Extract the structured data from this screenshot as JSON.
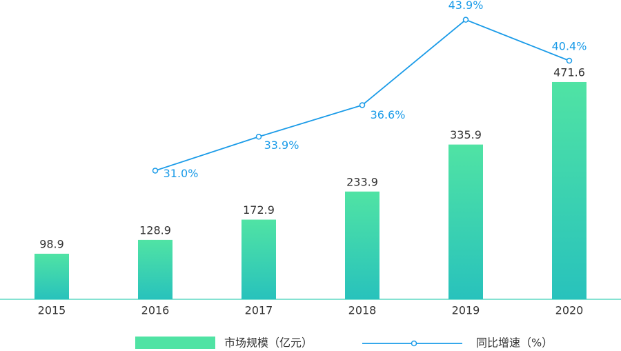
{
  "chart_data": {
    "type": "bar-line",
    "categories": [
      "2015",
      "2016",
      "2017",
      "2018",
      "2019",
      "2020"
    ],
    "series": [
      {
        "name": "市场规模（亿元）",
        "type": "bar",
        "color": "#50e3a4",
        "gradient": [
          "#50e3a4",
          "#28c2bc"
        ],
        "values": [
          98.9,
          128.9,
          172.9,
          233.9,
          335.9,
          471.6
        ]
      },
      {
        "name": "同比增速（%）",
        "type": "line",
        "axis": "y2",
        "color": "#1a9be8",
        "values": [
          null,
          31.0,
          33.9,
          36.6,
          43.9,
          40.4
        ],
        "value_labels": [
          null,
          "31.0%",
          "33.9%",
          "36.6%",
          "43.9%",
          "40.4%"
        ]
      }
    ],
    "ylim": [
      0,
      500
    ],
    "y2lim": [
      20,
      45
    ],
    "grid": false,
    "legend": "bottom"
  }
}
